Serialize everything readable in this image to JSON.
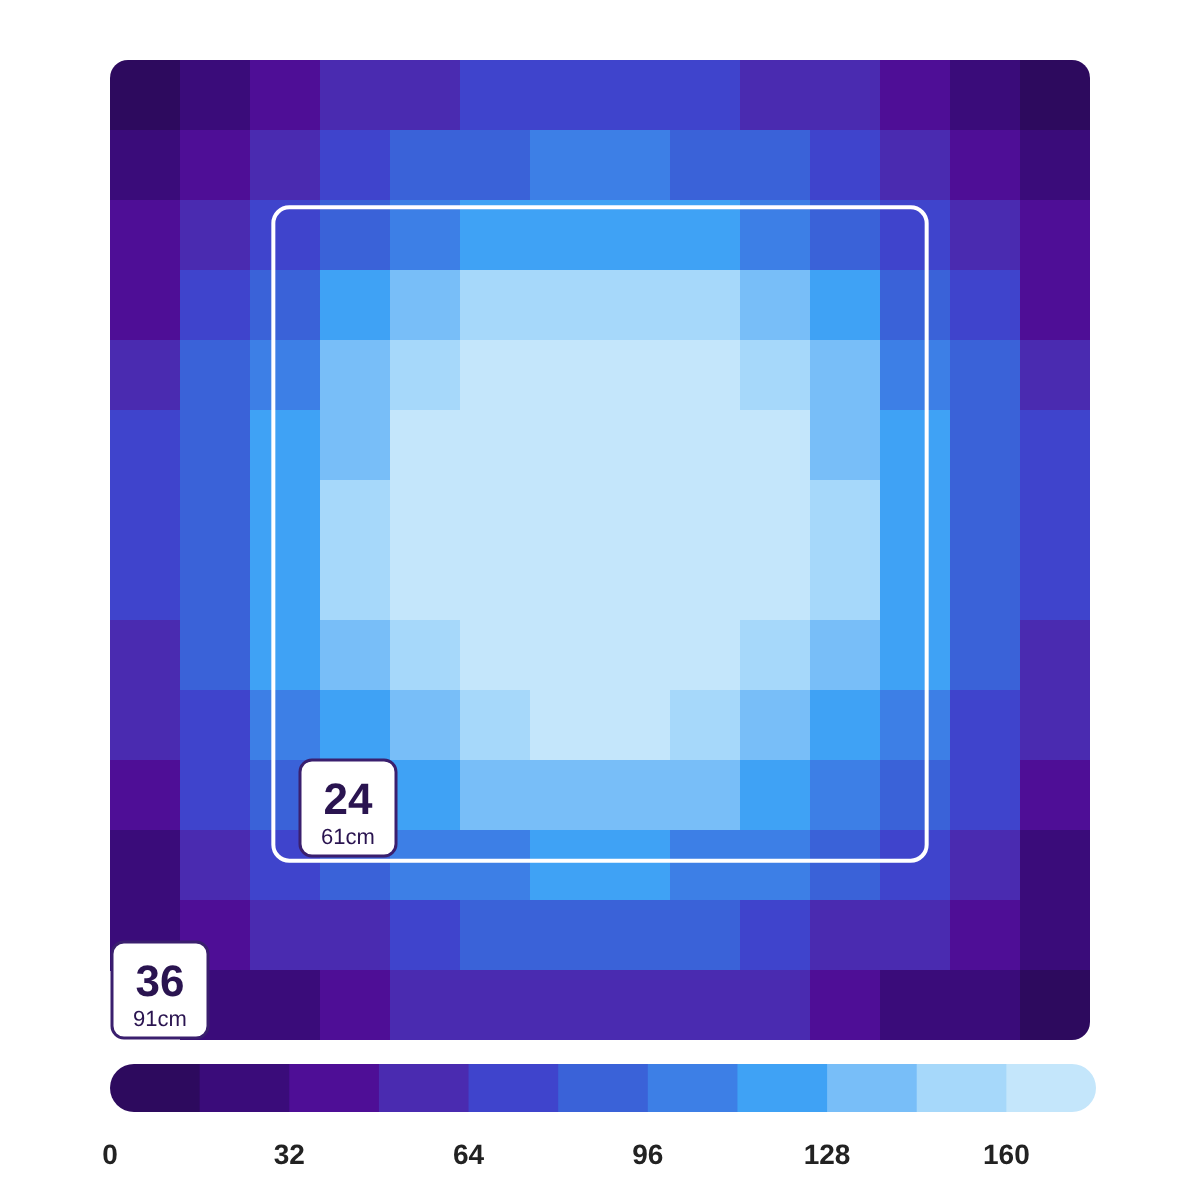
{
  "chart_data": {
    "type": "heatmap",
    "categories": [
      null,
      null,
      null,
      null,
      null,
      null,
      null,
      null,
      null,
      null,
      null,
      null,
      null,
      null
    ],
    "y_categories": [
      null,
      null,
      null,
      null,
      null,
      null,
      null,
      null,
      null,
      null,
      null,
      null,
      null,
      null
    ],
    "cells": [
      [
        8,
        24,
        40,
        56,
        56,
        72,
        72,
        72,
        72,
        56,
        56,
        40,
        24,
        8
      ],
      [
        24,
        40,
        56,
        72,
        88,
        88,
        104,
        104,
        88,
        88,
        72,
        56,
        40,
        24
      ],
      [
        40,
        56,
        72,
        88,
        104,
        120,
        120,
        120,
        120,
        104,
        88,
        72,
        56,
        40
      ],
      [
        40,
        72,
        88,
        120,
        136,
        152,
        152,
        152,
        152,
        136,
        120,
        88,
        72,
        40
      ],
      [
        56,
        88,
        104,
        136,
        152,
        168,
        168,
        168,
        168,
        152,
        136,
        104,
        88,
        56
      ],
      [
        72,
        88,
        120,
        136,
        168,
        168,
        168,
        168,
        168,
        168,
        136,
        120,
        88,
        72
      ],
      [
        72,
        88,
        120,
        152,
        168,
        168,
        168,
        168,
        168,
        168,
        152,
        120,
        88,
        72
      ],
      [
        72,
        88,
        120,
        152,
        168,
        168,
        168,
        168,
        168,
        168,
        152,
        120,
        88,
        72
      ],
      [
        56,
        88,
        120,
        136,
        152,
        168,
        168,
        168,
        168,
        152,
        136,
        120,
        88,
        56
      ],
      [
        56,
        72,
        104,
        120,
        136,
        152,
        168,
        168,
        152,
        136,
        120,
        104,
        72,
        56
      ],
      [
        40,
        72,
        88,
        null,
        120,
        136,
        136,
        136,
        136,
        120,
        104,
        88,
        72,
        40
      ],
      [
        24,
        56,
        72,
        88,
        104,
        104,
        120,
        120,
        104,
        104,
        88,
        72,
        56,
        24
      ],
      [
        24,
        40,
        56,
        56,
        72,
        88,
        88,
        88,
        88,
        72,
        56,
        56,
        40,
        24
      ],
      [
        null,
        24,
        24,
        40,
        56,
        56,
        56,
        56,
        56,
        56,
        40,
        24,
        24,
        8
      ]
    ],
    "clim": [
      0,
      176
    ],
    "cticks": [
      0,
      32,
      64,
      96,
      128,
      160
    ],
    "colors": [
      "#2d0a5e",
      "#3a0c7a",
      "#4e0e96",
      "#4a2bb0",
      "#3f44cc",
      "#3a62d8",
      "#3d7fe6",
      "#3fa2f5",
      "#78bef8",
      "#a6d8fa",
      "#c4e6fb"
    ],
    "annotations": [
      "24",
      "61cm",
      "36",
      "91cm"
    ]
  }
}
